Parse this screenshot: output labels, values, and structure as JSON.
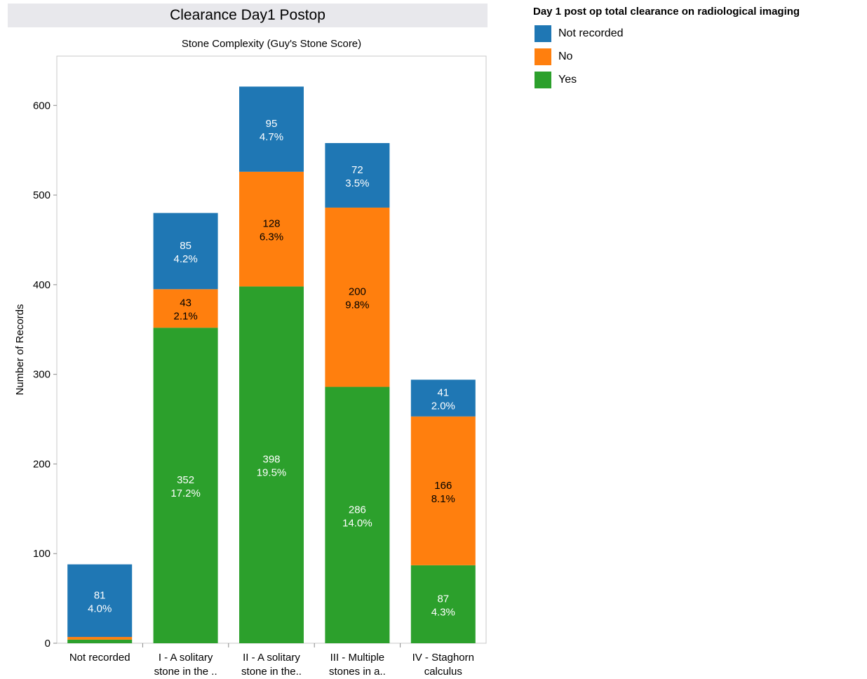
{
  "title": "Clearance Day1 Postop",
  "legend": {
    "title": "Day 1 post op total clearance on radiological imaging",
    "items": [
      {
        "label": "Not recorded",
        "color": "#1f77b4"
      },
      {
        "label": "No",
        "color": "#ff7f0e"
      },
      {
        "label": "Yes",
        "color": "#2ca02c"
      }
    ]
  },
  "chart_data": {
    "type": "bar",
    "stacked": true,
    "title": "Stone Complexity (Guy's Stone Score)",
    "xlabel": "",
    "ylabel": "Number of Records",
    "ylim": [
      0,
      655
    ],
    "yticks": [
      0,
      100,
      200,
      300,
      400,
      500,
      600
    ],
    "grid": false,
    "legend_position": "top-right",
    "categories": [
      [
        "Not recorded"
      ],
      [
        "I - A solitary",
        "stone in the .."
      ],
      [
        "II - A solitary",
        "stone in the.."
      ],
      [
        "III  - Multiple",
        "stones in a.."
      ],
      [
        "IV - Staghorn",
        "calculus"
      ]
    ],
    "series": [
      {
        "name": "Yes",
        "color": "#2ca02c",
        "text_color": "#ffffff",
        "values": [
          4,
          352,
          398,
          286,
          87
        ],
        "labels": [
          null,
          [
            "352",
            "17.2%"
          ],
          [
            "398",
            "19.5%"
          ],
          [
            "286",
            "14.0%"
          ],
          [
            "87",
            "4.3%"
          ]
        ]
      },
      {
        "name": "No",
        "color": "#ff7f0e",
        "text_color": "#000000",
        "values": [
          3,
          43,
          128,
          200,
          166
        ],
        "labels": [
          null,
          [
            "43",
            "2.1%"
          ],
          [
            "128",
            "6.3%"
          ],
          [
            "200",
            "9.8%"
          ],
          [
            "166",
            "8.1%"
          ]
        ]
      },
      {
        "name": "Not recorded",
        "color": "#1f77b4",
        "text_color": "#ffffff",
        "values": [
          81,
          85,
          95,
          72,
          41
        ],
        "labels": [
          [
            "81",
            "4.0%"
          ],
          [
            "85",
            "4.2%"
          ],
          [
            "95",
            "4.7%"
          ],
          [
            "72",
            "3.5%"
          ],
          [
            "41",
            "2.0%"
          ]
        ]
      }
    ]
  }
}
